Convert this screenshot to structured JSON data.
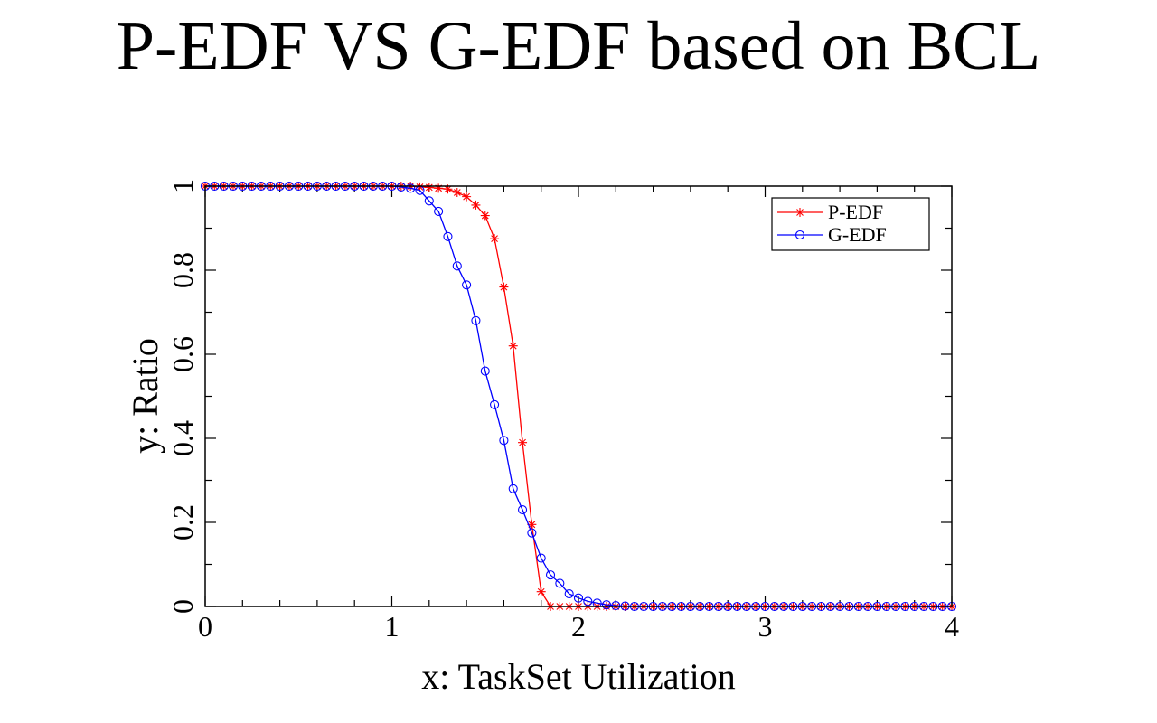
{
  "chart_data": {
    "type": "line",
    "title": "P-EDF VS G-EDF based on BCL",
    "xlabel": "x: TaskSet Utilization",
    "ylabel": "y: Ratio",
    "xlim": [
      0,
      4
    ],
    "ylim": [
      0,
      1
    ],
    "x_ticks": [
      "0",
      "1",
      "2",
      "3",
      "4"
    ],
    "y_ticks": [
      "0",
      "0.2",
      "0.4",
      "0.6",
      "0.8",
      "1"
    ],
    "grid": false,
    "legend_position": "top-right",
    "series": [
      {
        "name": "P-EDF",
        "color": "#ff0000",
        "marker": "asterisk",
        "x": [
          0,
          0.05,
          0.1,
          0.15,
          0.2,
          0.25,
          0.3,
          0.35,
          0.4,
          0.45,
          0.5,
          0.55,
          0.6,
          0.65,
          0.7,
          0.75,
          0.8,
          0.85,
          0.9,
          0.95,
          1.0,
          1.05,
          1.1,
          1.15,
          1.2,
          1.25,
          1.3,
          1.35,
          1.4,
          1.45,
          1.5,
          1.55,
          1.6,
          1.65,
          1.7,
          1.75,
          1.8,
          1.85,
          1.9,
          1.95,
          2.0,
          2.05,
          2.1,
          2.15,
          2.2,
          2.25,
          2.3,
          2.35,
          2.4,
          2.45,
          2.5,
          2.55,
          2.6,
          2.65,
          2.7,
          2.75,
          2.8,
          2.85,
          2.9,
          2.95,
          3.0,
          3.05,
          3.1,
          3.15,
          3.2,
          3.25,
          3.3,
          3.35,
          3.4,
          3.45,
          3.5,
          3.55,
          3.6,
          3.65,
          3.7,
          3.75,
          3.8,
          3.85,
          3.9,
          3.95,
          4.0
        ],
        "y": [
          1,
          1,
          1,
          1,
          1,
          1,
          1,
          1,
          1,
          1,
          1,
          1,
          1,
          1,
          1,
          1,
          1,
          1,
          1,
          1,
          1,
          1,
          1,
          0.998,
          0.997,
          0.995,
          0.993,
          0.985,
          0.975,
          0.955,
          0.93,
          0.875,
          0.76,
          0.62,
          0.39,
          0.195,
          0.035,
          0,
          0,
          0,
          0,
          0,
          0,
          0,
          0,
          0,
          0,
          0,
          0,
          0,
          0,
          0,
          0,
          0,
          0,
          0,
          0,
          0,
          0,
          0,
          0,
          0,
          0,
          0,
          0,
          0,
          0,
          0,
          0,
          0,
          0,
          0,
          0,
          0,
          0,
          0,
          0,
          0,
          0,
          0,
          0
        ]
      },
      {
        "name": "G-EDF",
        "color": "#0000ff",
        "marker": "circle",
        "x": [
          0,
          0.05,
          0.1,
          0.15,
          0.2,
          0.25,
          0.3,
          0.35,
          0.4,
          0.45,
          0.5,
          0.55,
          0.6,
          0.65,
          0.7,
          0.75,
          0.8,
          0.85,
          0.9,
          0.95,
          1.0,
          1.05,
          1.1,
          1.15,
          1.2,
          1.25,
          1.3,
          1.35,
          1.4,
          1.45,
          1.5,
          1.55,
          1.6,
          1.65,
          1.7,
          1.75,
          1.8,
          1.85,
          1.9,
          1.95,
          2.0,
          2.05,
          2.1,
          2.15,
          2.2,
          2.25,
          2.3,
          2.35,
          2.4,
          2.45,
          2.5,
          2.55,
          2.6,
          2.65,
          2.7,
          2.75,
          2.8,
          2.85,
          2.9,
          2.95,
          3.0,
          3.05,
          3.1,
          3.15,
          3.2,
          3.25,
          3.3,
          3.35,
          3.4,
          3.45,
          3.5,
          3.55,
          3.6,
          3.65,
          3.7,
          3.75,
          3.8,
          3.85,
          3.9,
          3.95,
          4.0
        ],
        "y": [
          1,
          1,
          1,
          1,
          1,
          1,
          1,
          1,
          1,
          1,
          1,
          1,
          1,
          1,
          1,
          1,
          1,
          1,
          1,
          1,
          1,
          0.998,
          0.995,
          0.99,
          0.965,
          0.94,
          0.88,
          0.81,
          0.765,
          0.68,
          0.56,
          0.48,
          0.395,
          0.28,
          0.23,
          0.175,
          0.115,
          0.075,
          0.055,
          0.03,
          0.02,
          0.012,
          0.008,
          0.004,
          0.002,
          0.001,
          0,
          0,
          0,
          0,
          0,
          0,
          0,
          0,
          0,
          0,
          0,
          0,
          0,
          0,
          0,
          0,
          0,
          0,
          0,
          0,
          0,
          0,
          0,
          0,
          0,
          0,
          0,
          0,
          0,
          0,
          0,
          0,
          0,
          0,
          0
        ]
      }
    ]
  }
}
